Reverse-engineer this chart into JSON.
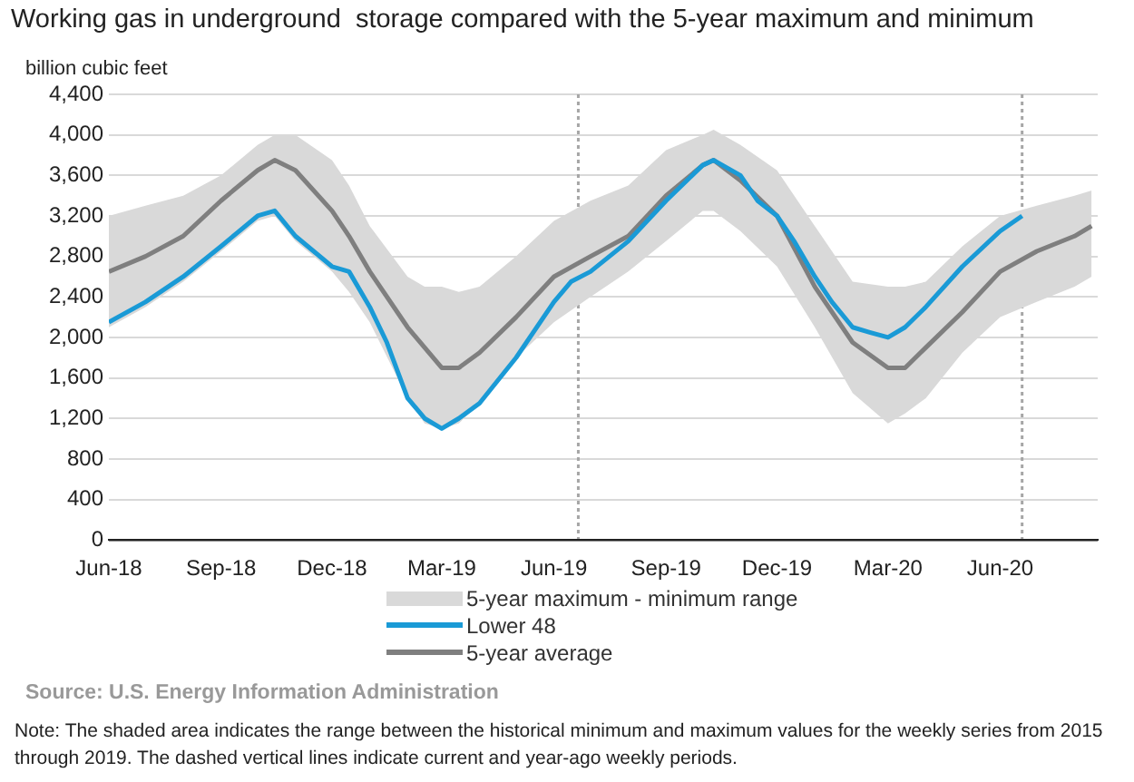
{
  "chart_data": {
    "type": "line",
    "title": "Working gas in underground  storage compared with the 5-year maximum and minimum",
    "ylabel": "billion cubic feet",
    "xlim": [
      "2018-06-01",
      "2020-08-20"
    ],
    "xticks": [
      {
        "value": "2018-06-01",
        "label": "Jun-18"
      },
      {
        "value": "2018-09-01",
        "label": "Sep-18"
      },
      {
        "value": "2018-12-01",
        "label": "Dec-18"
      },
      {
        "value": "2019-03-01",
        "label": "Mar-19"
      },
      {
        "value": "2019-06-01",
        "label": "Jun-19"
      },
      {
        "value": "2019-09-01",
        "label": "Sep-19"
      },
      {
        "value": "2019-12-01",
        "label": "Dec-19"
      },
      {
        "value": "2020-03-01",
        "label": "Mar-20"
      },
      {
        "value": "2020-06-01",
        "label": "Jun-20"
      }
    ],
    "ylim": [
      0,
      4400
    ],
    "yticks": [
      {
        "value": 0,
        "label": "0"
      },
      {
        "value": 400,
        "label": "400"
      },
      {
        "value": 800,
        "label": "800"
      },
      {
        "value": 1200,
        "label": "1,200"
      },
      {
        "value": 1600,
        "label": "1,600"
      },
      {
        "value": 2000,
        "label": "2,000"
      },
      {
        "value": 2400,
        "label": "2,400"
      },
      {
        "value": 2800,
        "label": "2,800"
      },
      {
        "value": 3200,
        "label": "3,200"
      },
      {
        "value": 3600,
        "label": "3,600"
      },
      {
        "value": 4000,
        "label": "4,000"
      },
      {
        "value": 4400,
        "label": "4,400"
      }
    ],
    "grid": "y",
    "legend": "bottom",
    "marker": "none",
    "line_style": "solid",
    "series": [
      {
        "name": "Lower 48",
        "color": "#1a9ad6",
        "x": [
          "2018-06-01",
          "2018-07-01",
          "2018-08-01",
          "2018-09-01",
          "2018-10-01",
          "2018-10-15",
          "2018-11-01",
          "2018-12-01",
          "2018-12-15",
          "2019-01-01",
          "2019-01-15",
          "2019-02-01",
          "2019-02-15",
          "2019-03-01",
          "2019-03-15",
          "2019-04-01",
          "2019-05-01",
          "2019-06-01",
          "2019-06-15",
          "2019-07-01",
          "2019-08-01",
          "2019-09-01",
          "2019-10-01",
          "2019-10-10",
          "2019-11-01",
          "2019-11-15",
          "2019-12-01",
          "2019-12-15",
          "2020-01-01",
          "2020-01-15",
          "2020-02-01",
          "2020-02-15",
          "2020-03-01",
          "2020-03-15",
          "2020-04-01",
          "2020-05-01",
          "2020-06-01",
          "2020-06-19"
        ],
        "values": [
          2150,
          2350,
          2600,
          2900,
          3200,
          3250,
          3000,
          2700,
          2650,
          2300,
          1950,
          1400,
          1200,
          1100,
          1200,
          1350,
          1800,
          2350,
          2550,
          2650,
          2950,
          3350,
          3700,
          3750,
          3600,
          3350,
          3200,
          2950,
          2600,
          2350,
          2100,
          2050,
          2000,
          2100,
          2300,
          2700,
          3050,
          3200
        ]
      },
      {
        "name": "5-year average",
        "color": "#7f7f7f",
        "x": [
          "2018-06-01",
          "2018-07-01",
          "2018-08-01",
          "2018-09-01",
          "2018-10-01",
          "2018-10-15",
          "2018-11-01",
          "2018-12-01",
          "2018-12-15",
          "2019-01-01",
          "2019-02-01",
          "2019-02-15",
          "2019-03-01",
          "2019-03-15",
          "2019-04-01",
          "2019-05-01",
          "2019-06-01",
          "2019-07-01",
          "2019-08-01",
          "2019-09-01",
          "2019-10-01",
          "2019-10-10",
          "2019-11-01",
          "2019-12-01",
          "2020-01-01",
          "2020-02-01",
          "2020-03-01",
          "2020-03-15",
          "2020-04-01",
          "2020-05-01",
          "2020-06-01",
          "2020-07-01",
          "2020-08-01",
          "2020-08-15"
        ],
        "values": [
          2650,
          2800,
          3000,
          3350,
          3650,
          3750,
          3650,
          3250,
          3000,
          2650,
          2100,
          1900,
          1700,
          1700,
          1850,
          2200,
          2600,
          2800,
          3000,
          3400,
          3700,
          3750,
          3550,
          3200,
          2500,
          1950,
          1700,
          1700,
          1900,
          2250,
          2650,
          2850,
          3000,
          3100
        ],
        "upper": [
          3200,
          3300,
          3400,
          3600,
          3900,
          4000,
          4000,
          3750,
          3500,
          3100,
          2600,
          2500,
          2500,
          2450,
          2500,
          2800,
          3150,
          3350,
          3500,
          3850,
          4000,
          4050,
          3900,
          3650,
          3100,
          2550,
          2500,
          2500,
          2550,
          2900,
          3200,
          3300,
          3400,
          3450
        ],
        "lower": [
          2100,
          2300,
          2550,
          2850,
          3150,
          3200,
          2950,
          2650,
          2450,
          2150,
          1400,
          1150,
          1100,
          1150,
          1350,
          1800,
          2150,
          2400,
          2650,
          2950,
          3250,
          3250,
          3050,
          2700,
          2100,
          1450,
          1150,
          1250,
          1400,
          1850,
          2200,
          2350,
          2500,
          2600
        ]
      }
    ],
    "ref_lines": [
      {
        "axis": "x",
        "value": "2019-06-21",
        "color": "#a6a6a6",
        "line_style": "dotted"
      },
      {
        "axis": "x",
        "value": "2020-06-19",
        "color": "#a6a6a6",
        "line_style": "dotted"
      }
    ],
    "annotations": [
      "5-year maximum - minimum range",
      "Source:  U.S. Energy Information Administration",
      "Note: The shaded area indicates the range between the historical minimum and maximum values for the weekly series from 2015 through 2019. The dashed vertical lines indicate current and year-ago weekly periods."
    ]
  }
}
